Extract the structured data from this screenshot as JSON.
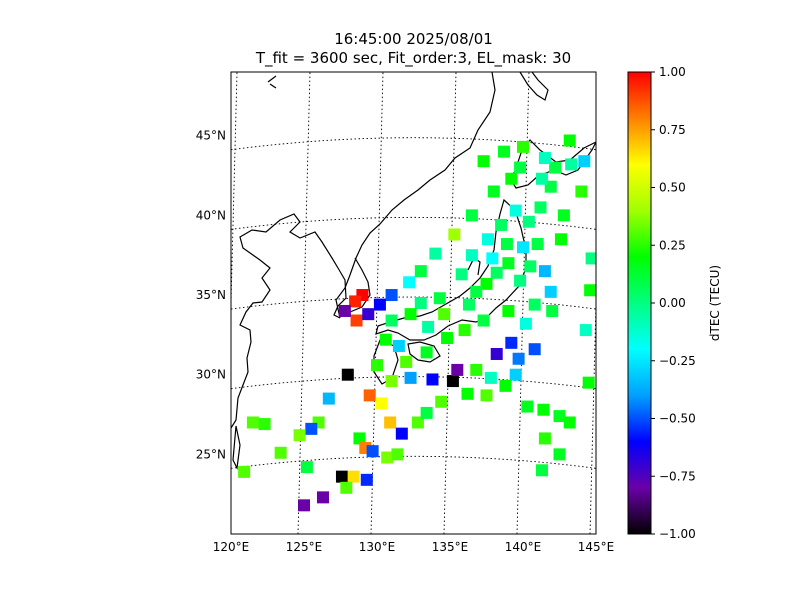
{
  "title_line1": "16:45:00 2025/08/01",
  "title_line2": "T_fit = 3600 sec, Fit_order:3, EL_mask: 30",
  "chart_data": {
    "type": "heatmap",
    "projection": "map",
    "xlim": [
      120,
      145
    ],
    "ylim": [
      20,
      49
    ],
    "x_tick_labels": [
      "120°E",
      "125°E",
      "130°E",
      "135°E",
      "140°E",
      "145°E"
    ],
    "y_tick_labels": [
      "25°N",
      "30°N",
      "35°N",
      "40°N",
      "45°N"
    ],
    "x_ticks": [
      120,
      125,
      130,
      135,
      140,
      145
    ],
    "y_ticks": [
      25,
      30,
      35,
      40,
      45
    ],
    "grid": "dotted",
    "colorbar": {
      "label": "dTEC (TECU)",
      "vmin": -1.0,
      "vmax": 1.0,
      "tick_labels": [
        "−1.00",
        "−0.75",
        "−0.50",
        "−0.25",
        "0.00",
        "0.25",
        "0.50",
        "0.75",
        "1.00"
      ],
      "colormap": [
        "#000000",
        "#6a00a8",
        "#0000ff",
        "#00a0ff",
        "#00ffff",
        "#00ff80",
        "#00ff00",
        "#a0ff00",
        "#ffff00",
        "#ff8000",
        "#ff0000"
      ]
    },
    "points": [
      {
        "lon": 139.0,
        "lat": 37.0,
        "v": 0.15
      },
      {
        "lon": 138.2,
        "lat": 36.4,
        "v": 0.05
      },
      {
        "lon": 137.5,
        "lat": 35.7,
        "v": 0.2
      },
      {
        "lon": 136.8,
        "lat": 35.2,
        "v": 0.1
      },
      {
        "lon": 139.8,
        "lat": 35.9,
        "v": 0.0
      },
      {
        "lon": 140.5,
        "lat": 36.8,
        "v": 0.05
      },
      {
        "lon": 141.0,
        "lat": 38.2,
        "v": 0.1
      },
      {
        "lon": 140.4,
        "lat": 39.6,
        "v": 0.0
      },
      {
        "lon": 141.2,
        "lat": 40.5,
        "v": 0.05
      },
      {
        "lon": 142.2,
        "lat": 43.0,
        "v": 0.1
      },
      {
        "lon": 141.5,
        "lat": 43.6,
        "v": -0.1
      },
      {
        "lon": 143.3,
        "lat": 43.2,
        "v": -0.05
      },
      {
        "lon": 144.2,
        "lat": 43.4,
        "v": -0.3
      },
      {
        "lon": 138.7,
        "lat": 44.0,
        "v": 0.15
      },
      {
        "lon": 137.3,
        "lat": 43.4,
        "v": 0.2
      },
      {
        "lon": 134.3,
        "lat": 34.8,
        "v": 0.1
      },
      {
        "lon": 133.0,
        "lat": 34.5,
        "v": 0.0
      },
      {
        "lon": 132.3,
        "lat": 33.8,
        "v": 0.2
      },
      {
        "lon": 131.0,
        "lat": 33.4,
        "v": 0.05
      },
      {
        "lon": 130.6,
        "lat": 32.2,
        "v": 0.2
      },
      {
        "lon": 131.0,
        "lat": 35.0,
        "v": -0.5
      },
      {
        "lon": 130.2,
        "lat": 34.4,
        "v": -0.6
      },
      {
        "lon": 129.0,
        "lat": 35.0,
        "v": 1.0
      },
      {
        "lon": 128.5,
        "lat": 34.6,
        "v": 0.95
      },
      {
        "lon": 128.6,
        "lat": 33.4,
        "v": 0.9
      },
      {
        "lon": 129.4,
        "lat": 33.8,
        "v": -0.7
      },
      {
        "lon": 127.8,
        "lat": 34.0,
        "v": -0.8
      },
      {
        "lon": 135.2,
        "lat": 29.6,
        "v": -1.0
      },
      {
        "lon": 133.8,
        "lat": 29.7,
        "v": -0.6
      },
      {
        "lon": 135.5,
        "lat": 30.3,
        "v": -0.8
      },
      {
        "lon": 138.2,
        "lat": 31.3,
        "v": -0.7
      },
      {
        "lon": 139.2,
        "lat": 32.0,
        "v": -0.55
      },
      {
        "lon": 139.7,
        "lat": 31.0,
        "v": -0.45
      },
      {
        "lon": 140.8,
        "lat": 31.6,
        "v": -0.5
      },
      {
        "lon": 139.5,
        "lat": 30.0,
        "v": -0.3
      },
      {
        "lon": 128.0,
        "lat": 30.0,
        "v": -1.0
      },
      {
        "lon": 129.5,
        "lat": 28.7,
        "v": 0.85
      },
      {
        "lon": 130.3,
        "lat": 28.2,
        "v": 0.6
      },
      {
        "lon": 130.9,
        "lat": 27.0,
        "v": 0.7
      },
      {
        "lon": 131.7,
        "lat": 26.3,
        "v": -0.6
      },
      {
        "lon": 128.8,
        "lat": 26.0,
        "v": 0.2
      },
      {
        "lon": 129.2,
        "lat": 25.4,
        "v": 0.8
      },
      {
        "lon": 129.7,
        "lat": 25.2,
        "v": -0.5
      },
      {
        "lon": 127.6,
        "lat": 23.6,
        "v": -1.0
      },
      {
        "lon": 128.4,
        "lat": 23.6,
        "v": 0.65
      },
      {
        "lon": 129.3,
        "lat": 23.4,
        "v": -0.55
      },
      {
        "lon": 126.3,
        "lat": 22.3,
        "v": -0.8
      },
      {
        "lon": 125.0,
        "lat": 21.8,
        "v": -0.8
      },
      {
        "lon": 127.9,
        "lat": 22.9,
        "v": 0.3
      },
      {
        "lon": 126.0,
        "lat": 27.0,
        "v": 0.3
      },
      {
        "lon": 125.5,
        "lat": 26.6,
        "v": -0.5
      },
      {
        "lon": 126.7,
        "lat": 28.5,
        "v": -0.35
      },
      {
        "lon": 124.7,
        "lat": 26.2,
        "v": 0.35
      },
      {
        "lon": 121.5,
        "lat": 27.0,
        "v": 0.3
      },
      {
        "lon": 122.3,
        "lat": 26.9,
        "v": 0.25
      },
      {
        "lon": 120.9,
        "lat": 23.9,
        "v": 0.3
      },
      {
        "lon": 123.4,
        "lat": 25.1,
        "v": 0.3
      },
      {
        "lon": 125.2,
        "lat": 24.2,
        "v": 0.1
      },
      {
        "lon": 130.7,
        "lat": 24.8,
        "v": 0.35
      },
      {
        "lon": 131.4,
        "lat": 25.0,
        "v": 0.3
      },
      {
        "lon": 132.8,
        "lat": 27.0,
        "v": 0.3
      },
      {
        "lon": 133.4,
        "lat": 27.6,
        "v": 0.1
      },
      {
        "lon": 134.4,
        "lat": 28.3,
        "v": 0.3
      },
      {
        "lon": 136.2,
        "lat": 28.8,
        "v": 0.2
      },
      {
        "lon": 137.5,
        "lat": 28.7,
        "v": 0.3
      },
      {
        "lon": 140.3,
        "lat": 28.0,
        "v": 0.15
      },
      {
        "lon": 141.4,
        "lat": 27.8,
        "v": 0.2
      },
      {
        "lon": 142.5,
        "lat": 27.4,
        "v": 0.15
      },
      {
        "lon": 143.2,
        "lat": 27.0,
        "v": 0.2
      },
      {
        "lon": 141.5,
        "lat": 26.0,
        "v": 0.25
      },
      {
        "lon": 142.5,
        "lat": 25.0,
        "v": 0.15
      },
      {
        "lon": 141.3,
        "lat": 24.0,
        "v": 0.1
      },
      {
        "lon": 144.5,
        "lat": 29.5,
        "v": 0.2
      },
      {
        "lon": 144.3,
        "lat": 32.8,
        "v": -0.1
      },
      {
        "lon": 144.6,
        "lat": 35.3,
        "v": 0.2
      },
      {
        "lon": 144.7,
        "lat": 37.3,
        "v": 0.0
      },
      {
        "lon": 144.0,
        "lat": 41.5,
        "v": 0.25
      },
      {
        "lon": 141.9,
        "lat": 41.8,
        "v": 0.1
      },
      {
        "lon": 141.3,
        "lat": 42.3,
        "v": -0.05
      },
      {
        "lon": 139.2,
        "lat": 42.3,
        "v": 0.2
      },
      {
        "lon": 138.0,
        "lat": 41.5,
        "v": 0.15
      },
      {
        "lon": 136.5,
        "lat": 40.0,
        "v": 0.1
      },
      {
        "lon": 135.3,
        "lat": 38.8,
        "v": 0.4
      },
      {
        "lon": 134.0,
        "lat": 37.6,
        "v": -0.05
      },
      {
        "lon": 133.0,
        "lat": 36.5,
        "v": 0.1
      },
      {
        "lon": 132.2,
        "lat": 35.8,
        "v": -0.2
      },
      {
        "lon": 135.8,
        "lat": 36.3,
        "v": 0.0
      },
      {
        "lon": 136.5,
        "lat": 37.5,
        "v": -0.1
      },
      {
        "lon": 137.6,
        "lat": 38.5,
        "v": -0.15
      },
      {
        "lon": 138.5,
        "lat": 39.4,
        "v": 0.05
      },
      {
        "lon": 139.5,
        "lat": 40.3,
        "v": -0.15
      },
      {
        "lon": 140.0,
        "lat": 38.0,
        "v": -0.25
      },
      {
        "lon": 141.5,
        "lat": 36.5,
        "v": -0.35
      },
      {
        "lon": 141.9,
        "lat": 35.2,
        "v": -0.3
      },
      {
        "lon": 140.8,
        "lat": 34.4,
        "v": 0.05
      },
      {
        "lon": 139.0,
        "lat": 34.0,
        "v": 0.2
      },
      {
        "lon": 137.3,
        "lat": 33.4,
        "v": 0.1
      },
      {
        "lon": 136.0,
        "lat": 32.8,
        "v": 0.25
      },
      {
        "lon": 134.8,
        "lat": 32.3,
        "v": 0.2
      },
      {
        "lon": 133.4,
        "lat": 31.4,
        "v": 0.15
      },
      {
        "lon": 132.0,
        "lat": 30.8,
        "v": 0.3
      },
      {
        "lon": 131.5,
        "lat": 31.8,
        "v": -0.3
      },
      {
        "lon": 130.0,
        "lat": 30.6,
        "v": 0.25
      },
      {
        "lon": 131.0,
        "lat": 29.6,
        "v": 0.35
      },
      {
        "lon": 132.3,
        "lat": 29.8,
        "v": -0.4
      },
      {
        "lon": 136.8,
        "lat": 30.3,
        "v": 0.25
      },
      {
        "lon": 137.8,
        "lat": 29.8,
        "v": -0.1
      },
      {
        "lon": 138.8,
        "lat": 29.3,
        "v": 0.2
      },
      {
        "lon": 142.0,
        "lat": 34.0,
        "v": 0.1
      },
      {
        "lon": 142.6,
        "lat": 38.5,
        "v": 0.2
      },
      {
        "lon": 142.8,
        "lat": 40.0,
        "v": 0.15
      },
      {
        "lon": 143.2,
        "lat": 44.7,
        "v": 0.2
      },
      {
        "lon": 140.0,
        "lat": 44.3,
        "v": 0.25
      },
      {
        "lon": 139.8,
        "lat": 43.0,
        "v": 0.1
      },
      {
        "lon": 133.5,
        "lat": 33.0,
        "v": -0.05
      },
      {
        "lon": 134.6,
        "lat": 33.8,
        "v": 0.3
      },
      {
        "lon": 137.9,
        "lat": 37.3,
        "v": -0.2
      },
      {
        "lon": 138.9,
        "lat": 38.2,
        "v": 0.1
      },
      {
        "lon": 136.3,
        "lat": 34.4,
        "v": 0.05
      },
      {
        "lon": 140.2,
        "lat": 33.2,
        "v": -0.15
      }
    ]
  }
}
